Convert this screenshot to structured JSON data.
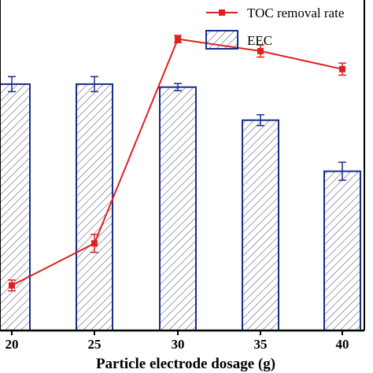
{
  "chart_data": {
    "type": "bar",
    "xlabel": "Particle electrode dosage (g)",
    "categories": [
      "20",
      "25",
      "30",
      "35",
      "40"
    ],
    "grid": false,
    "legend_position": "top-right",
    "series": [
      {
        "name": "EEC",
        "type": "bar",
        "pattern": "diagonal-hatch",
        "values": [
          0.82,
          0.82,
          0.81,
          0.7,
          0.53
        ],
        "errors": [
          0.025,
          0.025,
          0.012,
          0.018,
          0.03
        ]
      },
      {
        "name": "TOC removal rate",
        "type": "line",
        "values": [
          0.15,
          0.29,
          0.97,
          0.93,
          0.87
        ],
        "errors": [
          0.018,
          0.03,
          0.012,
          0.02,
          0.02
        ]
      }
    ],
    "ylim": [
      0,
      1.1
    ]
  },
  "colors": {
    "bar_edge": "#1a2c8c",
    "hatch": "#6a6a86",
    "line": "#e02020",
    "axis": "#000000"
  }
}
